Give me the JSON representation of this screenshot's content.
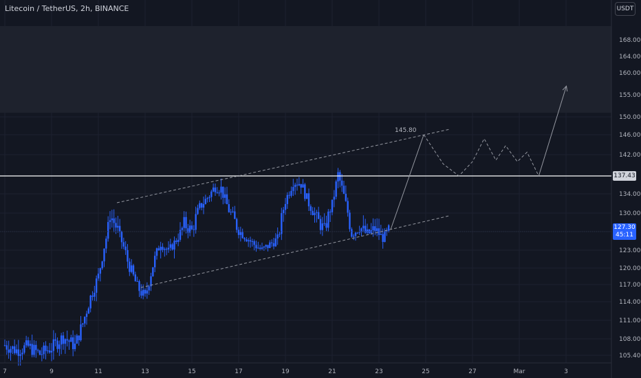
{
  "header": {
    "symbol_title": "Litecoin / TetherUS, 2h, BINANCE",
    "currency_label": "USDT"
  },
  "price_tags": {
    "level_label": "137.43",
    "current_price": "127.30",
    "countdown": "45:11",
    "target_label": "145.80"
  },
  "colors": {
    "background": "#131722",
    "candle": "#2962ff",
    "zone": "#1e222d",
    "level_line": "#ffffff",
    "annotation": "#9598a1"
  },
  "chart_data": {
    "type": "candlestick",
    "title": "Litecoin / TetherUS, 2h, BINANCE",
    "xlabel": "",
    "ylabel": "",
    "ylim": [
      104,
      171
    ],
    "x_ticks": [
      "7",
      "9",
      "11",
      "13",
      "15",
      "17",
      "19",
      "21",
      "23",
      "25",
      "27",
      "Mar",
      "3"
    ],
    "y_ticks": [
      105.4,
      108.0,
      111.0,
      114.0,
      117.0,
      120.0,
      123.0,
      127.3,
      130.0,
      134.0,
      137.43,
      142.0,
      146.0,
      150.0,
      155.0,
      160.0,
      164.0,
      168.0
    ],
    "y_tick_labels": [
      "105.40",
      "108.00",
      "111.00",
      "114.00",
      "117.00",
      "120.00",
      "123.00",
      "127.30",
      "130.00",
      "134.00",
      "137.43",
      "142.00",
      "146.00",
      "150.00",
      "155.00",
      "160.00",
      "164.00",
      "168.00"
    ],
    "path_approx_close": [
      [
        "Feb 7 00:00",
        107.0
      ],
      [
        "Feb 7 12:00",
        106.2
      ],
      [
        "Feb 8 00:00",
        106.8
      ],
      [
        "Feb 8 12:00",
        105.6
      ],
      [
        "Feb 9 00:00",
        106.6
      ],
      [
        "Feb 9 12:00",
        108.3
      ],
      [
        "Feb 10 00:00",
        106.9
      ],
      [
        "Feb 10 08:00",
        110.5
      ],
      [
        "Feb 10 16:00",
        114.8
      ],
      [
        "Feb 11 00:00",
        118.5
      ],
      [
        "Feb 11 06:00",
        123.8
      ],
      [
        "Feb 11 12:00",
        129.8
      ],
      [
        "Feb 11 20:00",
        127.5
      ],
      [
        "Feb 12 06:00",
        121.2
      ],
      [
        "Feb 12 16:00",
        116.6
      ],
      [
        "Feb 13 00:00",
        114.7
      ],
      [
        "Feb 13 08:00",
        120.5
      ],
      [
        "Feb 13 16:00",
        124.6
      ],
      [
        "Feb 14 00:00",
        122.7
      ],
      [
        "Feb 14 08:00",
        125.4
      ],
      [
        "Feb 14 16:00",
        128.4
      ],
      [
        "Feb 15 00:00",
        127.4
      ],
      [
        "Feb 15 08:00",
        131.2
      ],
      [
        "Feb 15 16:00",
        133.2
      ],
      [
        "Feb 16 00:00",
        135.4
      ],
      [
        "Feb 16 06:00",
        135.0
      ],
      [
        "Feb 16 14:00",
        130.6
      ],
      [
        "Feb 17 00:00",
        127.5
      ],
      [
        "Feb 17 08:00",
        125.9
      ],
      [
        "Feb 17 16:00",
        124.3
      ],
      [
        "Feb 18 00:00",
        123.0
      ],
      [
        "Feb 18 08:00",
        124.3
      ],
      [
        "Feb 18 16:00",
        125.6
      ],
      [
        "Feb 19 00:00",
        132.6
      ],
      [
        "Feb 19 08:00",
        136.4
      ],
      [
        "Feb 19 16:00",
        136.0
      ],
      [
        "Feb 20 00:00",
        132.0
      ],
      [
        "Feb 20 08:00",
        129.2
      ],
      [
        "Feb 20 16:00",
        127.5
      ],
      [
        "Feb 21 00:00",
        131.8
      ],
      [
        "Feb 21 06:00",
        137.8
      ],
      [
        "Feb 21 12:00",
        133.6
      ],
      [
        "Feb 21 20:00",
        126.7
      ],
      [
        "Feb 22 04:00",
        128.1
      ],
      [
        "Feb 22 12:00",
        126.7
      ],
      [
        "Feb 22 20:00",
        127.7
      ],
      [
        "Feb 23 04:00",
        125.8
      ],
      [
        "Feb 23 10:00",
        127.3
      ]
    ],
    "annotations": {
      "horizontal_level": 137.43,
      "target_label": "145.80",
      "upper_zone": [
        151.0,
        171.0
      ],
      "channel_upper": [
        [
          "Feb 11 12:00",
          133.0
        ],
        [
          "Feb 26 00:00",
          147.2
        ]
      ],
      "channel_lower": [
        [
          "Feb 13 00:00",
          116.0
        ],
        [
          "Feb 26 00:00",
          128.8
        ]
      ]
    }
  }
}
